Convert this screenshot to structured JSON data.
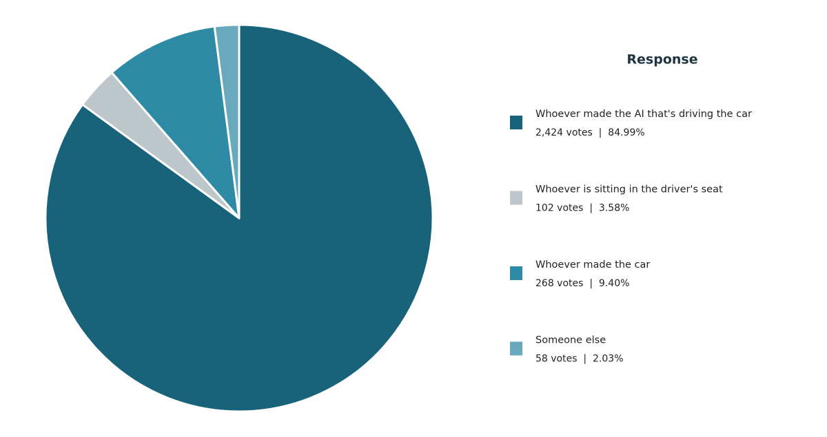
{
  "chart_data": {
    "type": "pie",
    "legend_title": "Response",
    "categories": [
      "Whoever made the AI that's driving the car",
      "Whoever is sitting in the driver's seat",
      "Whoever made the car",
      "Someone else"
    ],
    "values": [
      2424,
      102,
      268,
      58
    ],
    "value_labels": [
      "2,424 votes  |  84.99%",
      "102 votes  |  3.58%",
      "268 votes  |  9.40%",
      "58 votes  |  2.03%"
    ],
    "colors": [
      "#18637a",
      "#bcc6cb",
      "#2e8aa5",
      "#6aa9bd"
    ],
    "legend": "right"
  }
}
